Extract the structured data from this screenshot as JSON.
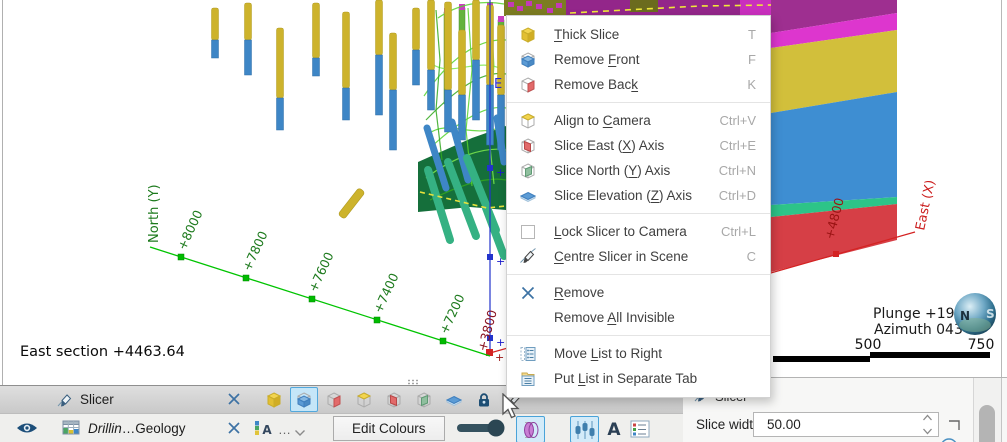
{
  "scene": {
    "section_label": "East section +4463.64",
    "plunge_label": "Plunge +19",
    "azimuth_label": "Azimuth 043",
    "scale_labels": [
      "500",
      "750"
    ],
    "north_axis": {
      "label": "North (Y)",
      "ticks": [
        "+8000",
        "+7800",
        "+7600",
        "+7400",
        "+7200"
      ]
    },
    "east_axis": {
      "label": "East (X)",
      "tick": "+4800"
    },
    "elev_axis": {
      "label": "E",
      "tick": "+3800"
    },
    "compass_letters": [
      "N",
      "S"
    ]
  },
  "context_menu": {
    "items": [
      {
        "icon": "thick-slice",
        "label": "Thick Slice",
        "u": 0,
        "shortcut": "T"
      },
      {
        "icon": "remove-front",
        "label": "Remove Front",
        "u": 7,
        "shortcut": "F"
      },
      {
        "icon": "remove-back",
        "label": "Remove Back",
        "u": 10,
        "shortcut": "K"
      },
      {
        "type": "sep"
      },
      {
        "icon": "align-camera",
        "label": "Align to Camera",
        "u": 9,
        "shortcut": "Ctrl+V"
      },
      {
        "icon": "slice-east",
        "label": "Slice East (X) Axis",
        "u": 12,
        "shortcut": "Ctrl+E"
      },
      {
        "icon": "slice-north",
        "label": "Slice North (Y) Axis",
        "u": 13,
        "shortcut": "Ctrl+N"
      },
      {
        "icon": "slice-elevation",
        "label": "Slice Elevation (Z) Axis",
        "u": 17,
        "shortcut": "Ctrl+D"
      },
      {
        "type": "sep"
      },
      {
        "icon": "checkbox",
        "label": "Lock Slicer to Camera",
        "u": 0,
        "shortcut": "Ctrl+L"
      },
      {
        "icon": "centre-slicer",
        "label": "Centre Slicer in Scene",
        "u": 0,
        "shortcut": "C"
      },
      {
        "type": "sep"
      },
      {
        "icon": "remove-x",
        "label": "Remove",
        "u": 0,
        "shortcut": ""
      },
      {
        "icon": "none",
        "label": "Remove All Invisible",
        "u": 7,
        "shortcut": ""
      },
      {
        "type": "sep"
      },
      {
        "icon": "move-list",
        "label": "Move List to Right",
        "u": 5,
        "shortcut": ""
      },
      {
        "icon": "put-list",
        "label": "Put List in Separate Tab",
        "u": 4,
        "shortcut": ""
      }
    ]
  },
  "bottom_panel": {
    "slicer_row": {
      "label": "Slicer",
      "tools": [
        "thick-slice",
        "remove-front",
        "remove-back",
        "align-camera",
        "slice-east",
        "slice-north",
        "slice-elevation",
        "lock",
        "centre-slicer"
      ],
      "selected_tool": "remove-front"
    },
    "layer_row": {
      "name_italic": "Drillin",
      "name_ellipsis": "…",
      "name_rest": "Geology",
      "dots": "…",
      "edit_colours": "Edit Colours"
    }
  },
  "right_panel": {
    "title": "Slicer",
    "slice_width_label": "Slice width:",
    "slice_width_value": "50.00"
  },
  "colors": {
    "selection_accent": "#49a3d9",
    "axis_north": "#00c400",
    "axis_east": "#d42222",
    "axis_elev": "#2233cc",
    "band_dark_magenta": "#9e2f90",
    "band_magenta": "#dd36ce",
    "band_yellow": "#d2bf3b",
    "band_blue": "#3e8ed2",
    "band_green": "#2dc488",
    "band_red": "#d63f46",
    "drill_yellow": "#cdb32c",
    "drill_blue": "#3e86c6",
    "drill_teal": "#35b183",
    "mesh_green": "#55d42e"
  }
}
